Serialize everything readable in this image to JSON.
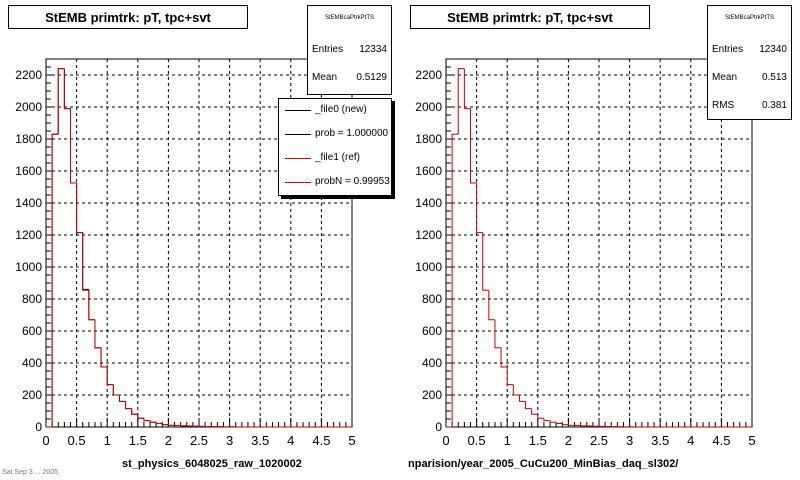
{
  "footer_text": "Sat Sep  3 ... 2005",
  "chart_data": [
    {
      "type": "bar",
      "title": "StEMB primtrk: pT, tpc+svt",
      "xlabel": "st_physics_6048025_raw_1020002",
      "ylabel": "",
      "xlim": [
        0,
        5
      ],
      "ylim": [
        0,
        2300
      ],
      "x_ticks": [
        "0",
        "0.5",
        "1",
        "1.5",
        "2",
        "2.5",
        "3",
        "3.5",
        "4",
        "4.5",
        "5"
      ],
      "y_ticks": [
        "0",
        "200",
        "400",
        "600",
        "800",
        "1000",
        "1200",
        "1400",
        "1600",
        "1800",
        "2000",
        "2200"
      ],
      "grid": true,
      "bin_width": 0.1,
      "bin_start": 0,
      "series": [
        {
          "name": "_file0 (new)",
          "color": "#000000",
          "values": [
            0,
            1830,
            2240,
            1990,
            1525,
            1215,
            860,
            670,
            495,
            375,
            265,
            200,
            160,
            115,
            80,
            55,
            40,
            30,
            22,
            15,
            10,
            9,
            7,
            6,
            5,
            4,
            3,
            2,
            2,
            1,
            1,
            0,
            0,
            0,
            0,
            0,
            0,
            0,
            0,
            0,
            0,
            0,
            0,
            0,
            0,
            0,
            0,
            0,
            0,
            0
          ]
        },
        {
          "name": "_file1 (ref)",
          "color": "#cc0000",
          "values": [
            0,
            1830,
            2240,
            1990,
            1525,
            1215,
            855,
            670,
            495,
            375,
            265,
            200,
            160,
            115,
            80,
            55,
            40,
            30,
            22,
            15,
            10,
            9,
            7,
            6,
            5,
            4,
            3,
            2,
            2,
            1,
            1,
            0,
            0,
            0,
            0,
            0,
            0,
            0,
            0,
            0,
            0,
            0,
            0,
            0,
            0,
            0,
            0,
            0,
            0,
            0
          ]
        }
      ],
      "stats": {
        "name": "StEMBcaPtrkPtTS",
        "rows": [
          {
            "label": "Entries",
            "value": "12334"
          },
          {
            "label": "Mean",
            "value": "0.5129"
          }
        ]
      },
      "legend": {
        "placement": "top-right",
        "entries": [
          {
            "label": "_file0 (new)",
            "color": "#000000"
          },
          {
            "label": "prob = 1.000000",
            "color": "#000000"
          },
          {
            "label": "_file1 (ref)",
            "color": "#cc0000"
          },
          {
            "label": "probN = 0.99953",
            "color": "#cc0000"
          }
        ]
      }
    },
    {
      "type": "bar",
      "title": "StEMB primtrk: pT, tpc+svt",
      "xlabel": "nparision/year_2005_CuCu200_MinBias_daq_sl302/",
      "ylabel": "",
      "xlim": [
        0,
        5
      ],
      "ylim": [
        0,
        2300
      ],
      "x_ticks": [
        "0",
        "0.5",
        "1",
        "1.5",
        "2",
        "2.5",
        "3",
        "3.5",
        "4",
        "4.5",
        "5"
      ],
      "y_ticks": [
        "0",
        "200",
        "400",
        "600",
        "800",
        "1000",
        "1200",
        "1400",
        "1600",
        "1800",
        "2000",
        "2200"
      ],
      "grid": true,
      "bin_width": 0.1,
      "bin_start": 0,
      "series": [
        {
          "name": "",
          "color": "#cc0000",
          "values": [
            0,
            1830,
            2240,
            1990,
            1525,
            1215,
            855,
            670,
            495,
            375,
            265,
            200,
            160,
            115,
            80,
            55,
            40,
            30,
            22,
            15,
            10,
            9,
            7,
            6,
            5,
            4,
            3,
            2,
            2,
            1,
            1,
            0,
            0,
            0,
            0,
            0,
            0,
            0,
            0,
            0,
            0,
            0,
            0,
            0,
            0,
            0,
            0,
            0,
            0,
            0
          ]
        }
      ],
      "stats": {
        "name": "StEMBcaPtrkPtTS",
        "rows": [
          {
            "label": "Entries",
            "value": "12340"
          },
          {
            "label": "Mean",
            "value": "0.513"
          },
          {
            "label": "RMS",
            "value": "0.381"
          }
        ]
      }
    }
  ]
}
